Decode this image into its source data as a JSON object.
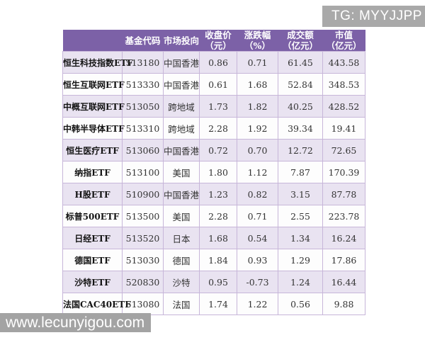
{
  "overlays": {
    "tg_badge": "TG: MYYJJPP",
    "site_watermark": "www.lecunyigou.com"
  },
  "colors": {
    "header_bg": "#7c61a7",
    "row_alt_bg": "#e9e3f1",
    "row_bg": "#fdfdfd",
    "border": "#c7b6d9",
    "header_text": "#ffffff",
    "overlay_bg": "#a9a9a9",
    "overlay_text": "#ffffff"
  },
  "chart_data": {
    "type": "table",
    "columns": [
      {
        "title": "",
        "unit": ""
      },
      {
        "title": "基金代码",
        "unit": ""
      },
      {
        "title": "市场投向",
        "unit": ""
      },
      {
        "title": "收盘价",
        "unit": "（元）"
      },
      {
        "title": "涨跌幅",
        "unit": "（%）"
      },
      {
        "title": "成交额",
        "unit": "（亿元）"
      },
      {
        "title": "市值",
        "unit": "（亿元）"
      }
    ],
    "row_keys": [
      "name",
      "code",
      "market",
      "close",
      "change",
      "turnover",
      "cap"
    ],
    "rows": [
      {
        "name": "恒生科技指数ETF",
        "code": "513180",
        "market": "中国香港",
        "close": "0.86",
        "change": "0.71",
        "turnover": "61.45",
        "cap": "443.58"
      },
      {
        "name": "恒生互联网ETF",
        "code": "513330",
        "market": "中国香港",
        "close": "0.61",
        "change": "1.68",
        "turnover": "52.84",
        "cap": "348.53"
      },
      {
        "name": "中概互联网ETF",
        "code": "513050",
        "market": "跨地域",
        "close": "1.73",
        "change": "1.82",
        "turnover": "40.25",
        "cap": "428.52"
      },
      {
        "name": "中韩半导体ETF",
        "code": "513310",
        "market": "跨地域",
        "close": "2.28",
        "change": "1.92",
        "turnover": "39.34",
        "cap": "19.41"
      },
      {
        "name": "恒生医疗ETF",
        "code": "513060",
        "market": "中国香港",
        "close": "0.72",
        "change": "0.70",
        "turnover": "12.72",
        "cap": "72.65"
      },
      {
        "name": "纳指ETF",
        "code": "513100",
        "market": "美国",
        "close": "1.80",
        "change": "1.12",
        "turnover": "7.87",
        "cap": "170.39"
      },
      {
        "name": "H股ETF",
        "code": "510900",
        "market": "中国香港",
        "close": "1.23",
        "change": "0.82",
        "turnover": "3.15",
        "cap": "87.78"
      },
      {
        "name": "标普500ETF",
        "code": "513500",
        "market": "美国",
        "close": "2.28",
        "change": "0.71",
        "turnover": "2.55",
        "cap": "223.78"
      },
      {
        "name": "日经ETF",
        "code": "513520",
        "market": "日本",
        "close": "1.68",
        "change": "0.54",
        "turnover": "1.34",
        "cap": "16.24"
      },
      {
        "name": "德国ETF",
        "code": "513030",
        "market": "德国",
        "close": "1.84",
        "change": "0.93",
        "turnover": "1.29",
        "cap": "17.86"
      },
      {
        "name": "沙特ETF",
        "code": "520830",
        "market": "沙特",
        "close": "0.95",
        "change": "-0.73",
        "turnover": "1.24",
        "cap": "16.44"
      },
      {
        "name": "法国CAC40ETF",
        "code": "513080",
        "market": "法国",
        "close": "1.74",
        "change": "1.22",
        "turnover": "0.56",
        "cap": "9.88"
      }
    ]
  }
}
